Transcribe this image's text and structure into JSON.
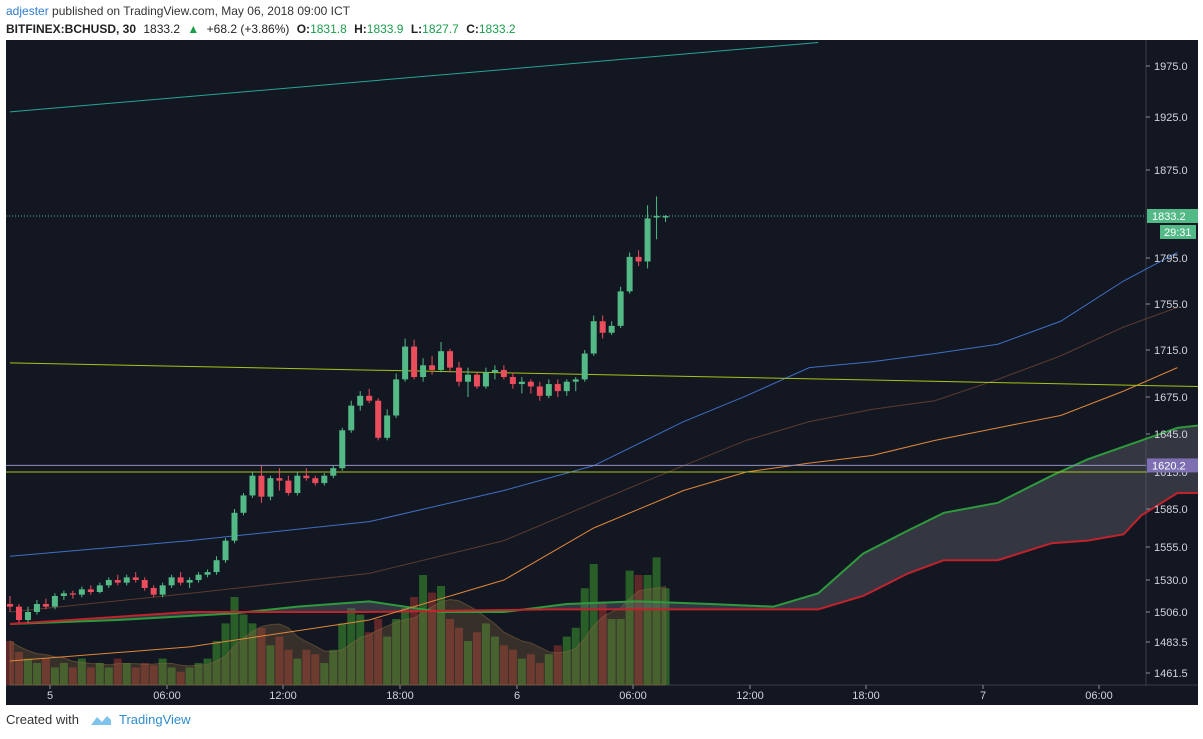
{
  "header": {
    "publisher": "adjester",
    "published_text": "published on TradingView.com, May 06, 2018 09:00 ICT",
    "symbol": "BITFINEX:BCHUSD, 30",
    "last": "1833.2",
    "change": "+68.2 (+3.86%)",
    "o_label": "O:",
    "o": "1831.8",
    "h_label": "H:",
    "h": "1833.9",
    "l_label": "L:",
    "l": "1827.7",
    "c_label": "C:",
    "c": "1833.2"
  },
  "footer": {
    "created_with": "Created with",
    "brand": "TradingView"
  },
  "colors": {
    "background": "#131722",
    "up": "#53b987",
    "down": "#eb4d5c",
    "price_line": "#53b987",
    "level_label": "#7e6fb3",
    "cloud_green": "#2e9a3c",
    "cloud_red": "#c0232b",
    "ma_blue": "#3f6fc4",
    "ma_orange": "#e0873a",
    "ma_brown": "#5a3b30",
    "trend_teal": "#27a594",
    "trend_yellow": "#a5c414"
  },
  "chart_data": {
    "type": "candlestick",
    "timeframe": "30",
    "y_ticks": [
      "1975.0",
      "1925.0",
      "1875.0",
      "1795.0",
      "1755.0",
      "1715.0",
      "1675.0",
      "1645.0",
      "1615.0",
      "1585.0",
      "1555.0",
      "1530.0",
      "1506.0",
      "1483.5",
      "1461.5"
    ],
    "x_ticks": [
      "5",
      "06:00",
      "12:00",
      "18:00",
      "6",
      "06:00",
      "12:00",
      "18:00",
      "7",
      "06:00"
    ],
    "price_label": "1833.2",
    "countdown_label": "29:31",
    "level_label": "1620.2",
    "candles": [
      [
        1512,
        1518,
        1506,
        1510
      ],
      [
        1510,
        1512,
        1498,
        1500
      ],
      [
        1500,
        1510,
        1498,
        1506
      ],
      [
        1506,
        1515,
        1504,
        1512
      ],
      [
        1512,
        1516,
        1508,
        1510
      ],
      [
        1510,
        1520,
        1508,
        1518
      ],
      [
        1518,
        1522,
        1515,
        1520
      ],
      [
        1520,
        1522,
        1516,
        1519
      ],
      [
        1519,
        1525,
        1517,
        1523
      ],
      [
        1523,
        1526,
        1519,
        1521
      ],
      [
        1521,
        1528,
        1520,
        1526
      ],
      [
        1526,
        1532,
        1524,
        1530
      ],
      [
        1530,
        1534,
        1526,
        1528
      ],
      [
        1528,
        1534,
        1526,
        1532
      ],
      [
        1532,
        1536,
        1528,
        1530
      ],
      [
        1530,
        1532,
        1522,
        1524
      ],
      [
        1524,
        1526,
        1517,
        1519
      ],
      [
        1519,
        1528,
        1517,
        1526
      ],
      [
        1526,
        1534,
        1524,
        1532
      ],
      [
        1532,
        1536,
        1526,
        1528
      ],
      [
        1528,
        1532,
        1524,
        1530
      ],
      [
        1530,
        1536,
        1528,
        1534
      ],
      [
        1534,
        1538,
        1532,
        1536
      ],
      [
        1536,
        1548,
        1534,
        1545
      ],
      [
        1545,
        1562,
        1543,
        1560
      ],
      [
        1560,
        1585,
        1558,
        1582
      ],
      [
        1582,
        1598,
        1580,
        1596
      ],
      [
        1596,
        1615,
        1594,
        1612
      ],
      [
        1612,
        1620,
        1590,
        1595
      ],
      [
        1595,
        1612,
        1592,
        1610
      ],
      [
        1610,
        1618,
        1600,
        1608
      ],
      [
        1608,
        1612,
        1596,
        1598
      ],
      [
        1598,
        1615,
        1596,
        1612
      ],
      [
        1612,
        1618,
        1608,
        1610
      ],
      [
        1610,
        1612,
        1604,
        1606
      ],
      [
        1606,
        1614,
        1604,
        1612
      ],
      [
        1612,
        1620,
        1610,
        1618
      ],
      [
        1618,
        1650,
        1616,
        1648
      ],
      [
        1648,
        1672,
        1646,
        1668
      ],
      [
        1668,
        1680,
        1664,
        1676
      ],
      [
        1676,
        1682,
        1670,
        1672
      ],
      [
        1672,
        1674,
        1640,
        1642
      ],
      [
        1642,
        1665,
        1640,
        1660
      ],
      [
        1660,
        1695,
        1658,
        1690
      ],
      [
        1690,
        1725,
        1688,
        1718
      ],
      [
        1718,
        1724,
        1690,
        1692
      ],
      [
        1692,
        1708,
        1688,
        1702
      ],
      [
        1702,
        1710,
        1694,
        1698
      ],
      [
        1698,
        1722,
        1696,
        1714
      ],
      [
        1714,
        1716,
        1696,
        1700
      ],
      [
        1700,
        1705,
        1684,
        1688
      ],
      [
        1688,
        1700,
        1675,
        1694
      ],
      [
        1694,
        1696,
        1682,
        1684
      ],
      [
        1684,
        1700,
        1682,
        1696
      ],
      [
        1696,
        1702,
        1690,
        1698
      ],
      [
        1698,
        1702,
        1690,
        1692
      ],
      [
        1692,
        1696,
        1682,
        1686
      ],
      [
        1686,
        1692,
        1678,
        1688
      ],
      [
        1688,
        1690,
        1678,
        1684
      ],
      [
        1684,
        1688,
        1672,
        1676
      ],
      [
        1676,
        1690,
        1674,
        1686
      ],
      [
        1686,
        1690,
        1675,
        1680
      ],
      [
        1680,
        1690,
        1676,
        1688
      ],
      [
        1688,
        1692,
        1680,
        1690
      ],
      [
        1690,
        1715,
        1688,
        1712
      ],
      [
        1712,
        1745,
        1710,
        1740
      ],
      [
        1740,
        1745,
        1725,
        1730
      ],
      [
        1730,
        1740,
        1728,
        1736
      ],
      [
        1736,
        1770,
        1734,
        1766
      ],
      [
        1766,
        1800,
        1764,
        1796
      ],
      [
        1796,
        1802,
        1788,
        1792
      ],
      [
        1792,
        1843,
        1786,
        1831
      ],
      [
        1831.8,
        1851,
        1812,
        1833.2
      ],
      [
        1831.8,
        1833.9,
        1827.7,
        1833.2
      ]
    ],
    "volumes": [
      0.2,
      0.15,
      0.12,
      0.1,
      0.12,
      0.08,
      0.1,
      0.08,
      0.12,
      0.08,
      0.1,
      0.08,
      0.12,
      0.1,
      0.08,
      0.1,
      0.09,
      0.12,
      0.08,
      0.06,
      0.08,
      0.1,
      0.12,
      0.2,
      0.28,
      0.4,
      0.32,
      0.28,
      0.26,
      0.18,
      0.22,
      0.16,
      0.12,
      0.16,
      0.14,
      0.1,
      0.16,
      0.28,
      0.35,
      0.32,
      0.24,
      0.3,
      0.22,
      0.3,
      0.35,
      0.4,
      0.5,
      0.42,
      0.45,
      0.3,
      0.26,
      0.2,
      0.24,
      0.28,
      0.22,
      0.18,
      0.16,
      0.12,
      0.14,
      0.1,
      0.14,
      0.18,
      0.22,
      0.26,
      0.44,
      0.55,
      0.38,
      0.3,
      0.3,
      0.52,
      0.5,
      0.5,
      0.58,
      0.44
    ],
    "ma_blue": [
      [
        0,
        1548
      ],
      [
        20,
        1560
      ],
      [
        40,
        1575
      ],
      [
        55,
        1600
      ],
      [
        65,
        1620
      ],
      [
        75,
        1655
      ],
      [
        82,
        1676
      ],
      [
        89,
        1700
      ],
      [
        96,
        1705
      ],
      [
        103,
        1712
      ],
      [
        110,
        1720
      ],
      [
        117,
        1740
      ],
      [
        124,
        1775
      ],
      [
        130,
        1800
      ]
    ],
    "ma_brown": [
      [
        0,
        1506
      ],
      [
        20,
        1520
      ],
      [
        40,
        1535
      ],
      [
        55,
        1560
      ],
      [
        65,
        1590
      ],
      [
        75,
        1620
      ],
      [
        82,
        1640
      ],
      [
        89,
        1655
      ],
      [
        96,
        1665
      ],
      [
        103,
        1672
      ],
      [
        110,
        1690
      ],
      [
        117,
        1710
      ],
      [
        124,
        1735
      ],
      [
        130,
        1752
      ]
    ],
    "ma_orange": [
      [
        0,
        1470
      ],
      [
        20,
        1480
      ],
      [
        40,
        1500
      ],
      [
        55,
        1530
      ],
      [
        65,
        1570
      ],
      [
        75,
        1600
      ],
      [
        82,
        1615
      ],
      [
        89,
        1622
      ],
      [
        96,
        1628
      ],
      [
        103,
        1640
      ],
      [
        110,
        1650
      ],
      [
        117,
        1660
      ],
      [
        124,
        1680
      ],
      [
        130,
        1700
      ]
    ],
    "cloud_upper": [
      [
        0,
        1497
      ],
      [
        12,
        1500
      ],
      [
        25,
        1505
      ],
      [
        32,
        1510
      ],
      [
        40,
        1514
      ],
      [
        48,
        1506
      ],
      [
        55,
        1506
      ],
      [
        62,
        1512
      ],
      [
        70,
        1514
      ],
      [
        78,
        1512
      ],
      [
        85,
        1510
      ],
      [
        90,
        1520
      ],
      [
        95,
        1550
      ],
      [
        100,
        1568
      ],
      [
        104,
        1582
      ],
      [
        110,
        1590
      ],
      [
        116,
        1612
      ],
      [
        120,
        1625
      ],
      [
        124,
        1635
      ],
      [
        130,
        1650
      ],
      [
        136,
        1655
      ],
      [
        142,
        1660
      ],
      [
        148,
        1660
      ],
      [
        154,
        1658
      ],
      [
        160,
        1658
      ],
      [
        166,
        1668
      ],
      [
        172,
        1690
      ],
      [
        178,
        1730
      ],
      [
        184,
        1750
      ],
      [
        188,
        1760
      ]
    ],
    "cloud_lower": [
      [
        0,
        1497
      ],
      [
        20,
        1506
      ],
      [
        40,
        1506
      ],
      [
        60,
        1508
      ],
      [
        90,
        1508
      ],
      [
        95,
        1518
      ],
      [
        100,
        1535
      ],
      [
        104,
        1545
      ],
      [
        110,
        1545
      ],
      [
        116,
        1558
      ],
      [
        120,
        1560
      ],
      [
        124,
        1565
      ],
      [
        126,
        1580
      ],
      [
        130,
        1598
      ],
      [
        136,
        1598
      ],
      [
        145,
        1598
      ],
      [
        150,
        1612
      ],
      [
        156,
        1612
      ],
      [
        160,
        1615
      ],
      [
        166,
        1618
      ],
      [
        170,
        1625
      ],
      [
        176,
        1660
      ],
      [
        182,
        1668
      ],
      [
        188,
        1668
      ]
    ],
    "trend_teal": [
      [
        0,
        1930
      ],
      [
        90,
        1998
      ]
    ],
    "trend_yellow": [
      [
        0,
        1704
      ],
      [
        260,
        1665
      ]
    ],
    "level_lines": [
      1620.2,
      1615
    ],
    "ylim_ticks_note": "nonlinear price axis"
  }
}
